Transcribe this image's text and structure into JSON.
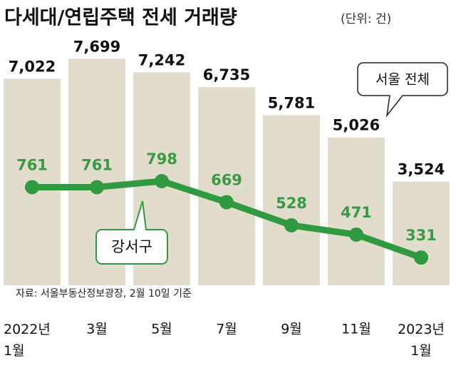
{
  "chart_data": {
    "type": "bar",
    "title": "다세대/연립주택 전세 거래량",
    "subtitle": "(단위: 건)",
    "categories": [
      "2022년 1월",
      "3월",
      "5월",
      "7월",
      "9월",
      "11월",
      "2023년 1월"
    ],
    "series": [
      {
        "name": "서울 전체",
        "type": "bar",
        "color": "#e1dccb",
        "values": [
          7022,
          7699,
          7242,
          6735,
          5781,
          5026,
          3524
        ],
        "value_labels": [
          "7,022",
          "7,699",
          "7,242",
          "6,735",
          "5,781",
          "5,026",
          "3,524"
        ]
      },
      {
        "name": "강서구",
        "type": "line",
        "axis": "y2",
        "color": "#2f9a3f",
        "values": [
          761,
          761,
          798,
          669,
          528,
          471,
          331
        ]
      }
    ],
    "ylim": [
      0,
      8000
    ],
    "y2lim": [
      0,
      1600
    ],
    "source": "자료: 서울부동산정보광장, 2월 10일 기준"
  }
}
